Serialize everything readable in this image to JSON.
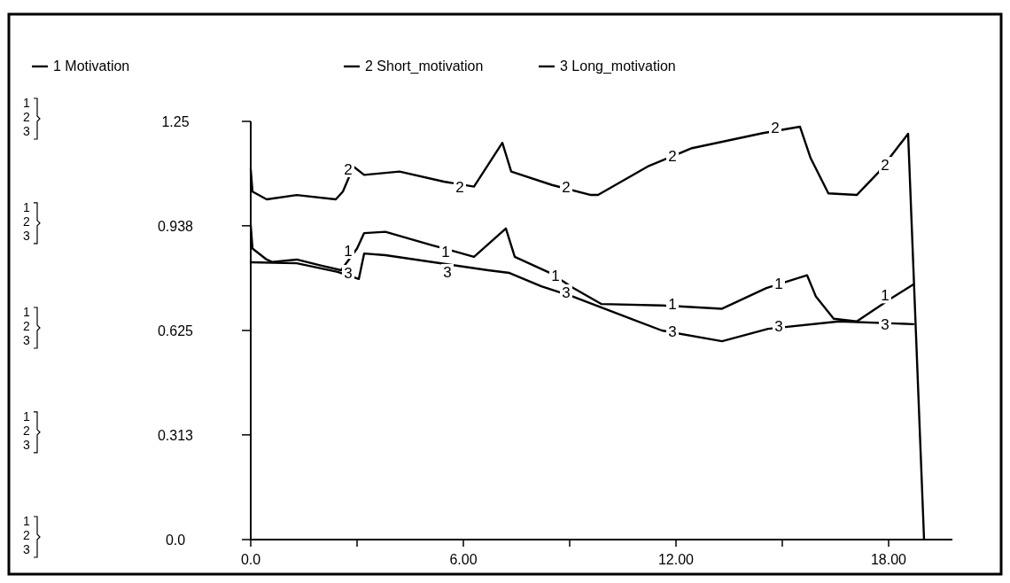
{
  "chart_data": {
    "type": "line",
    "legend": "top",
    "line_style": "solid",
    "marker": "none",
    "grid": false,
    "xlim": [
      0,
      19.8
    ],
    "ylim": [
      0,
      1.25
    ],
    "xticks": [
      {
        "value": 0,
        "label": "0.0"
      },
      {
        "value": 3,
        "label": null
      },
      {
        "value": 6,
        "label": "6.00"
      },
      {
        "value": 9,
        "label": null
      },
      {
        "value": 12,
        "label": "12.00"
      },
      {
        "value": 15,
        "label": null
      },
      {
        "value": 18,
        "label": "18.00"
      }
    ],
    "yticks": [
      {
        "value": 0,
        "label": "0.0"
      },
      0.313,
      0.625,
      0.938,
      1.25
    ],
    "annotations": [
      "1",
      "2",
      "3",
      "1",
      "2",
      "3",
      "1",
      "2",
      "3",
      "1",
      "2",
      "3",
      "1",
      "2",
      "3",
      {
        "text": "2",
        "x": 2.75,
        "y": 1.107
      },
      {
        "text": "2",
        "x": 5.9,
        "y": 1.054
      },
      {
        "text": "2",
        "x": 8.9,
        "y": 1.054
      },
      {
        "text": "2",
        "x": 11.9,
        "y": 1.147
      },
      {
        "text": "2",
        "x": 14.8,
        "y": 1.231
      },
      {
        "text": "2",
        "x": 17.9,
        "y": 1.12
      },
      {
        "text": "1",
        "x": 2.75,
        "y": 0.863
      },
      {
        "text": "1",
        "x": 5.5,
        "y": 0.862
      },
      {
        "text": "1",
        "x": 8.6,
        "y": 0.79
      },
      {
        "text": "1",
        "x": 11.9,
        "y": 0.704
      },
      {
        "text": "1",
        "x": 14.9,
        "y": 0.765
      },
      {
        "text": "1",
        "x": 17.9,
        "y": 0.73
      },
      {
        "text": "3",
        "x": 2.75,
        "y": 0.797
      },
      {
        "text": "3",
        "x": 5.55,
        "y": 0.8
      },
      {
        "text": "3",
        "x": 8.9,
        "y": 0.739
      },
      {
        "text": "3",
        "x": 11.9,
        "y": 0.622
      },
      {
        "text": "3",
        "x": 14.9,
        "y": 0.638
      },
      {
        "text": "3",
        "x": 17.9,
        "y": 0.644
      }
    ],
    "series": [
      {
        "name": "1 Motivation",
        "color": "#000000",
        "x": [
          0,
          0.05,
          0.45,
          0.6,
          1.3,
          1.95,
          2.55,
          3.0,
          3.2,
          3.8,
          5.1,
          5.7,
          6.3,
          7.2,
          7.45,
          8.45,
          9.1,
          9.9,
          11.6,
          13.3,
          14.55,
          15.7,
          15.95,
          16.45,
          17.1,
          18.1,
          18.7
        ],
        "values": [
          0.94,
          0.87,
          0.837,
          0.83,
          0.837,
          0.82,
          0.805,
          0.87,
          0.916,
          0.92,
          0.88,
          0.863,
          0.845,
          0.93,
          0.845,
          0.797,
          0.752,
          0.704,
          0.7,
          0.69,
          0.752,
          0.79,
          0.726,
          0.66,
          0.652,
          0.723,
          0.763
        ]
      },
      {
        "name": "2 Short_motivation",
        "color": "#000000",
        "x": [
          0,
          0.05,
          0.45,
          1.3,
          2.4,
          2.6,
          2.9,
          3.2,
          4.2,
          5.45,
          6.3,
          7.1,
          7.35,
          8.5,
          9.6,
          9.8,
          11.2,
          12.45,
          14.45,
          15.5,
          15.8,
          16.3,
          17.1,
          17.7,
          18.55,
          19.0
        ],
        "values": [
          1.107,
          1.04,
          1.017,
          1.03,
          1.017,
          1.04,
          1.115,
          1.09,
          1.1,
          1.07,
          1.055,
          1.186,
          1.1,
          1.06,
          1.03,
          1.03,
          1.115,
          1.17,
          1.215,
          1.234,
          1.14,
          1.035,
          1.03,
          1.096,
          1.213,
          0
        ]
      },
      {
        "name": "3 Long_motivation",
        "color": "#000000",
        "x": [
          0,
          1.3,
          2.45,
          3.05,
          3.2,
          3.8,
          6.7,
          7.3,
          8.2,
          9.1,
          10.8,
          11.6,
          13.3,
          14.6,
          16.6,
          18.7
        ],
        "values": [
          0.829,
          0.826,
          0.8,
          0.779,
          0.855,
          0.85,
          0.805,
          0.797,
          0.757,
          0.726,
          0.657,
          0.625,
          0.593,
          0.63,
          0.652,
          0.644
        ]
      }
    ]
  }
}
